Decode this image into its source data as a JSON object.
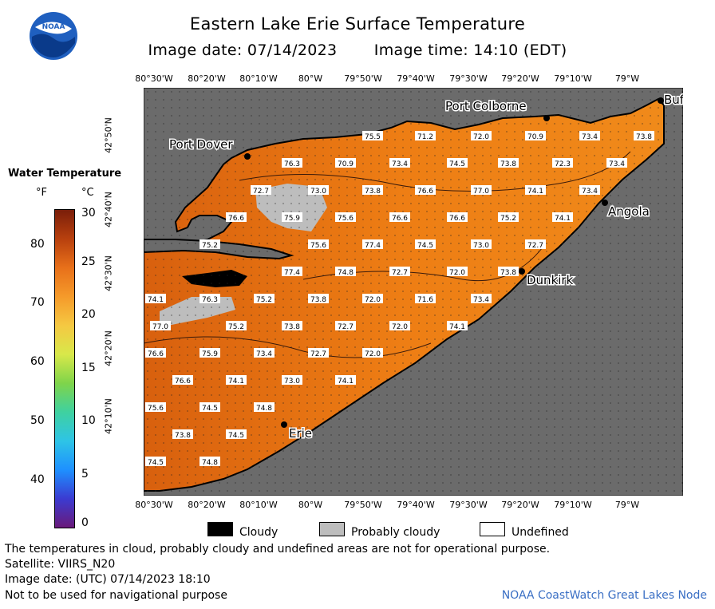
{
  "header": {
    "title": "Eastern Lake Erie Surface Temperature",
    "image_date": "Image date: 07/14/2023",
    "image_time": "Image time: 14:10 (EDT)"
  },
  "logo": {
    "text": "NOAA",
    "icon": "noaa-logo"
  },
  "axes": {
    "lon_ticks": [
      "80°30'W",
      "80°20'W",
      "80°10'W",
      "80°W",
      "79°50'W",
      "79°40'W",
      "79°30'W",
      "79°20'W",
      "79°10'W",
      "79°W"
    ],
    "lat_ticks": [
      "42°50'N",
      "42°40'N",
      "42°30'N",
      "42°20'N",
      "42°10'N"
    ]
  },
  "scale": {
    "title": "Water Temperature",
    "unit_f": "°F",
    "unit_c": "°C",
    "f_ticks": [
      "80",
      "70",
      "60",
      "50",
      "40"
    ],
    "c_ticks": [
      "30",
      "25",
      "20",
      "15",
      "10",
      "5",
      "0"
    ],
    "colors": [
      "#6a1a7a",
      "#3b3bd1",
      "#1e90ff",
      "#2ec4e6",
      "#3fd1a0",
      "#7fd44a",
      "#d8e84a",
      "#f5c842",
      "#f59a2a",
      "#e8701a",
      "#b8400e",
      "#7a1e0a"
    ]
  },
  "places": [
    "Port Colborne",
    "Buf",
    "Port Dover",
    "Angola",
    "Dunkirk",
    "Erie"
  ],
  "temperatures": [
    "75.5",
    "71.2",
    "72.0",
    "70.9",
    "73.4",
    "73.8",
    "76.3",
    "70.9",
    "73.4",
    "74.5",
    "73.8",
    "72.3",
    "73.4",
    "72.7",
    "73.0",
    "73.8",
    "76.6",
    "77.0",
    "74.1",
    "73.4",
    "76.6",
    "75.9",
    "75.6",
    "76.6",
    "76.6",
    "75.2",
    "74.1",
    "75.2",
    "75.6",
    "77.4",
    "74.5",
    "73.0",
    "72.7",
    "77.4",
    "74.8",
    "72.7",
    "72.0",
    "73.8",
    "74.1",
    "76.3",
    "75.2",
    "73.8",
    "72.0",
    "71.6",
    "73.4",
    "77.0",
    "75.2",
    "73.8",
    "72.7",
    "72.0",
    "74.1",
    "76.6",
    "75.9",
    "73.4",
    "72.7",
    "72.0",
    "76.6",
    "74.1",
    "73.0",
    "74.1",
    "75.6",
    "74.5",
    "74.8",
    "73.8",
    "74.5",
    "74.5",
    "74.8"
  ],
  "legend": {
    "cloudy": "Cloudy",
    "probably_cloudy": "Probably cloudy",
    "undefined": "Undefined"
  },
  "footer": {
    "note": "The temperatures in cloud, probably cloudy and undefined areas are not for operational purpose.",
    "satellite": "Satellite: VIIRS_N20",
    "utc_date": "Image date: (UTC) 07/14/2023  18:10",
    "navigation": "Not to be used for navigational purpose",
    "credit": "NOAA CoastWatch Great Lakes Node"
  }
}
